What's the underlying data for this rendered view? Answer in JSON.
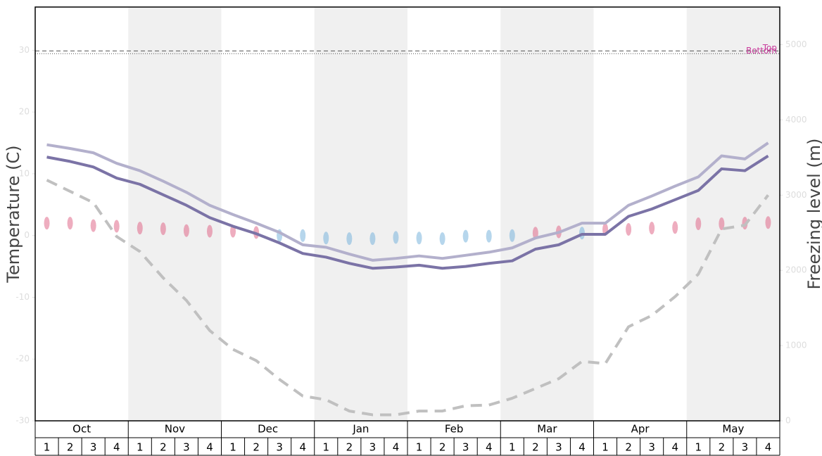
{
  "chart_data": {
    "type": "line",
    "ylabel": "Temperature (C)",
    "y2label": "Freezing level (m)",
    "ylim": [
      -30,
      37
    ],
    "yticks": [
      -30,
      -20,
      -10,
      0,
      10,
      20,
      30
    ],
    "y2lim": [
      0,
      5500
    ],
    "y2ticks": [
      0,
      1000,
      2000,
      3000,
      4000,
      5000
    ],
    "months": [
      "Oct",
      "Nov",
      "Dec",
      "Jan",
      "Feb",
      "Mar",
      "Apr",
      "May"
    ],
    "weeks": [
      1,
      2,
      3,
      4
    ],
    "shaded_months": [
      false,
      true,
      false,
      true,
      false,
      true,
      false,
      true
    ],
    "shade_color": "#f0f0f0",
    "series": [
      {
        "name": "Top",
        "color": "#b3b0cc",
        "values": [
          14.7,
          14.1,
          13.4,
          11.7,
          10.5,
          8.8,
          7.0,
          4.9,
          3.4,
          2.0,
          0.5,
          -1.5,
          -1.9,
          -3.0,
          -4.0,
          -3.7,
          -3.3,
          -3.7,
          -3.2,
          -2.7,
          -2.0,
          -0.4,
          0.5,
          2.0,
          2.0,
          4.9,
          6.4,
          8.0,
          9.5,
          12.9,
          12.4,
          15.0
        ]
      },
      {
        "name": "Bottom",
        "color": "#7b73a6",
        "values": [
          12.7,
          12.0,
          11.1,
          9.3,
          8.3,
          6.6,
          4.9,
          2.9,
          1.5,
          0.3,
          -1.2,
          -2.9,
          -3.5,
          -4.5,
          -5.3,
          -5.1,
          -4.8,
          -5.3,
          -5.0,
          -4.5,
          -4.1,
          -2.2,
          -1.5,
          0.2,
          0.2,
          3.1,
          4.3,
          5.8,
          7.3,
          10.8,
          10.5,
          12.9
        ]
      },
      {
        "name": "Freezing level",
        "color": "#c0c0c0",
        "axis": "y2",
        "dashed": true,
        "values": [
          3200,
          3050,
          2900,
          2450,
          2250,
          1900,
          1600,
          1200,
          950,
          800,
          550,
          330,
          280,
          130,
          80,
          80,
          130,
          130,
          200,
          210,
          300,
          430,
          560,
          790,
          760,
          1250,
          1400,
          1650,
          1950,
          2550,
          2600,
          3000
        ]
      }
    ],
    "dots": {
      "values": [
        2.0,
        2.0,
        1.6,
        1.5,
        1.2,
        1.1,
        0.8,
        0.7,
        0.7,
        0.5,
        0.0,
        0.0,
        -0.4,
        -0.5,
        -0.5,
        -0.3,
        -0.4,
        -0.5,
        -0.1,
        -0.1,
        0.0,
        0.4,
        0.6,
        0.4,
        1.0,
        1.0,
        1.2,
        1.3,
        1.9,
        1.9,
        2.0,
        2.1
      ],
      "colors": [
        "#e06a8a",
        "#e06a8a",
        "#e06a8a",
        "#e06a8a",
        "#e06a8a",
        "#e06a8a",
        "#e06a8a",
        "#e06a8a",
        "#e06a8a",
        "#e06a8a",
        "#7ab4dc",
        "#7ab4dc",
        "#7ab4dc",
        "#7ab4dc",
        "#7ab4dc",
        "#7ab4dc",
        "#7ab4dc",
        "#7ab4dc",
        "#7ab4dc",
        "#7ab4dc",
        "#7ab4dc",
        "#e06a8a",
        "#e06a8a",
        "#7ab4dc",
        "#e06a8a",
        "#e06a8a",
        "#e06a8a",
        "#e06a8a",
        "#e06a8a",
        "#e06a8a",
        "#e06a8a",
        "#e06a8a"
      ]
    },
    "reference_lines": [
      {
        "label": "Top",
        "value": 4916,
        "axis": "y2",
        "style": "dashed"
      },
      {
        "label": "Bottom",
        "value": 4880,
        "axis": "y2",
        "style": "dotted"
      }
    ],
    "reference_color": "#c83c9c"
  }
}
